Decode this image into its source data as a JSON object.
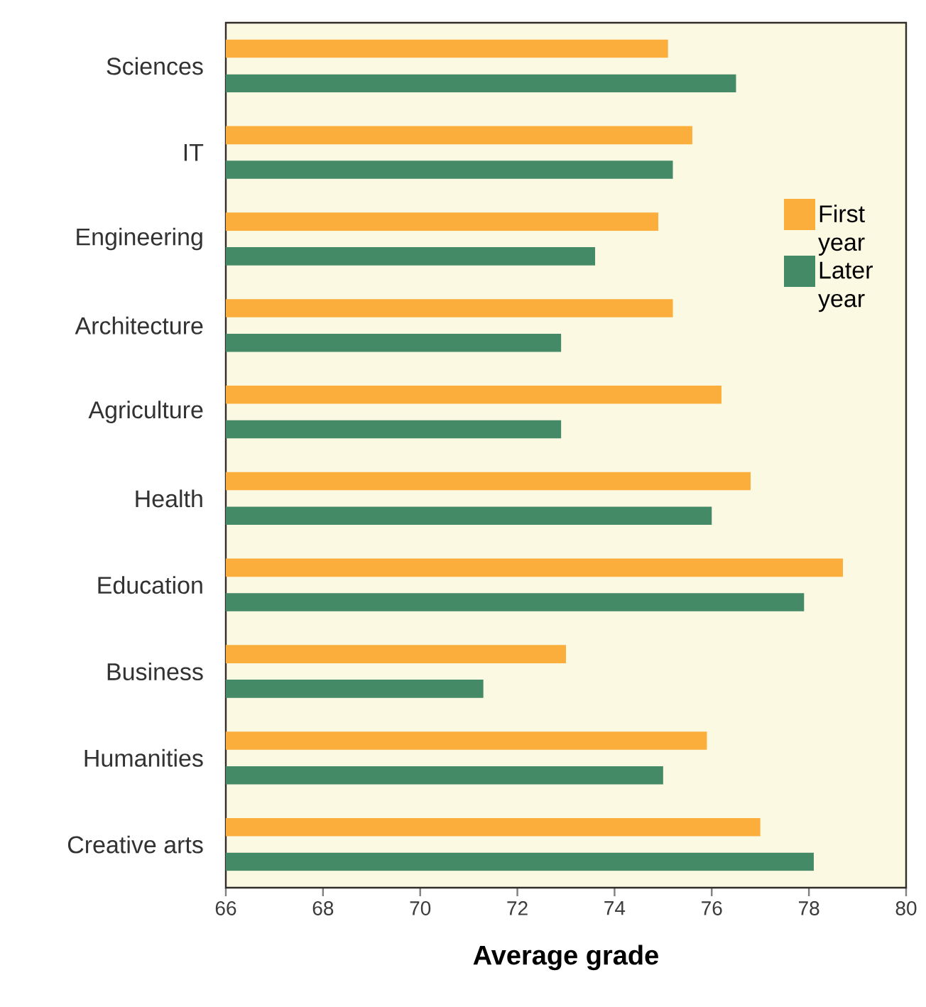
{
  "chart_data": {
    "type": "bar",
    "orientation": "horizontal",
    "xlabel": "Average grade",
    "categories": [
      "Sciences",
      "IT",
      "Engineering",
      "Architecture",
      "Agriculture",
      "Health",
      "Education",
      "Business",
      "Humanities",
      "Creative arts"
    ],
    "series": [
      {
        "name": "First year",
        "color": "#fbae3c",
        "values": [
          75.1,
          75.6,
          74.9,
          75.2,
          76.2,
          76.8,
          78.7,
          73.0,
          75.9,
          77.0
        ]
      },
      {
        "name": "Later year",
        "color": "#458a67",
        "values": [
          76.5,
          75.2,
          73.6,
          72.9,
          72.9,
          76.0,
          77.9,
          71.3,
          75.0,
          78.1
        ]
      }
    ],
    "xlim": [
      66,
      80
    ],
    "xticks": [
      66,
      68,
      70,
      72,
      74,
      76,
      78,
      80
    ],
    "legend": "right"
  }
}
